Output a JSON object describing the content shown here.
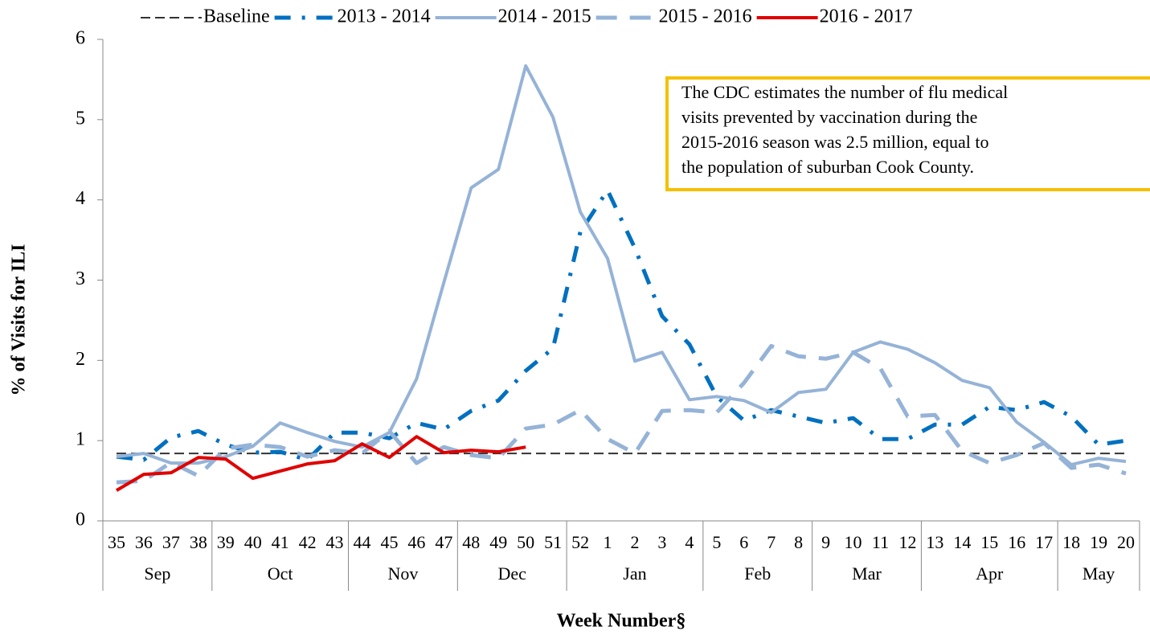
{
  "chart_data": {
    "type": "line",
    "y_label": "% of Visits for ILI",
    "x_label": "Week Number§",
    "categories": [
      "35",
      "36",
      "37",
      "38",
      "39",
      "40",
      "41",
      "42",
      "43",
      "44",
      "45",
      "46",
      "47",
      "48",
      "49",
      "50",
      "51",
      "52",
      "1",
      "2",
      "3",
      "4",
      "5",
      "6",
      "7",
      "8",
      "9",
      "10",
      "11",
      "12",
      "13",
      "14",
      "15",
      "16",
      "17",
      "18",
      "19",
      "20"
    ],
    "months": [
      "Sep",
      null,
      null,
      null,
      "Oct",
      null,
      null,
      null,
      null,
      "Nov",
      null,
      null,
      null,
      "Dec",
      null,
      null,
      null,
      "Jan",
      null,
      null,
      null,
      null,
      "Feb",
      null,
      null,
      null,
      "Mar",
      null,
      null,
      null,
      "Apr",
      null,
      null,
      null,
      null,
      "May",
      null,
      null
    ],
    "ylim": [
      0,
      6
    ],
    "yticks": [
      0,
      1,
      2,
      3,
      4,
      5,
      6
    ],
    "grid": false,
    "legend": "top",
    "series": [
      {
        "name": "Baseline",
        "color": "#333333",
        "line_style": "short-dash",
        "values": [
          0.84,
          0.84,
          0.84,
          0.84,
          0.84,
          0.84,
          0.84,
          0.84,
          0.84,
          0.84,
          0.84,
          0.84,
          0.84,
          0.84,
          0.84,
          0.84,
          0.84,
          0.84,
          0.84,
          0.84,
          0.84,
          0.84,
          0.84,
          0.84,
          0.84,
          0.84,
          0.84,
          0.84,
          0.84,
          0.84,
          0.84,
          0.84,
          0.84,
          0.84,
          0.84,
          0.84,
          0.84,
          0.84
        ]
      },
      {
        "name": "2013 - 2014",
        "color": "#0070c0",
        "line_style": "dash-dot",
        "values": [
          0.8,
          0.76,
          1.04,
          1.12,
          0.95,
          0.85,
          0.86,
          0.76,
          1.1,
          1.1,
          1.03,
          1.22,
          1.14,
          1.37,
          1.5,
          1.87,
          2.15,
          3.6,
          4.12,
          3.4,
          2.55,
          2.2,
          1.55,
          1.25,
          1.38,
          1.3,
          1.22,
          1.28,
          1.02,
          1.02,
          1.2,
          1.2,
          1.42,
          1.38,
          1.48,
          1.3,
          0.95,
          1.0
        ]
      },
      {
        "name": "2014 - 2015",
        "color": "#95b3d7",
        "line_style": "solid",
        "values": [
          0.8,
          0.84,
          0.72,
          0.72,
          0.8,
          0.93,
          1.22,
          1.1,
          0.99,
          0.92,
          1.1,
          1.77,
          2.97,
          4.15,
          4.38,
          5.67,
          5.03,
          3.85,
          3.27,
          1.99,
          2.1,
          1.51,
          1.55,
          1.5,
          1.35,
          1.6,
          1.64,
          2.1,
          2.23,
          2.14,
          1.97,
          1.75,
          1.66,
          1.23,
          0.98,
          0.7,
          0.78,
          0.74
        ]
      },
      {
        "name": "2015 - 2016",
        "color": "#95b3d7",
        "line_style": "long-dash",
        "values": [
          0.48,
          0.5,
          0.73,
          0.56,
          0.9,
          0.95,
          0.92,
          0.8,
          0.88,
          0.84,
          1.12,
          0.72,
          0.92,
          0.82,
          0.78,
          1.15,
          1.2,
          1.38,
          1.02,
          0.84,
          1.37,
          1.38,
          1.35,
          1.72,
          2.18,
          2.05,
          2.02,
          2.1,
          1.9,
          1.3,
          1.32,
          0.87,
          0.72,
          0.82,
          0.97,
          0.66,
          0.7,
          0.59
        ]
      },
      {
        "name": "2016 - 2017",
        "color": "#e00000",
        "line_style": "solid",
        "values": [
          0.38,
          0.58,
          0.6,
          0.79,
          0.77,
          0.53,
          0.62,
          0.71,
          0.75,
          0.96,
          0.79,
          1.05,
          0.85,
          0.88,
          0.86,
          0.92,
          null,
          null,
          null,
          null,
          null,
          null,
          null,
          null,
          null,
          null,
          null,
          null,
          null,
          null,
          null,
          null,
          null,
          null,
          null,
          null,
          null,
          null
        ]
      }
    ],
    "annotation": [
      "The CDC estimates the number of flu medical",
      "visits prevented by vaccination during the",
      "2015-2016 season was 2.5 million, equal to",
      "the population of suburban Cook County."
    ]
  }
}
